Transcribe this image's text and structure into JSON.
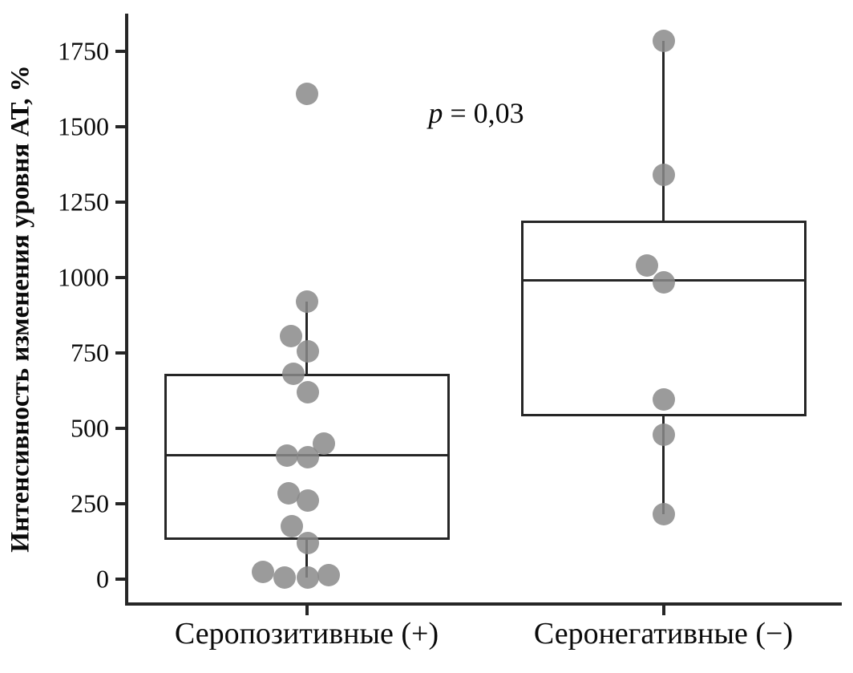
{
  "chart_data": {
    "type": "boxplot",
    "title": "",
    "xlabel": "",
    "ylabel": "Интенсивность изменения уровня АТ, %",
    "annotation": {
      "variable": "p",
      "text": " = 0,03"
    },
    "categories": [
      "Серопозитивные (+)",
      "Серонегативные (−)"
    ],
    "y_ticks": [
      0,
      250,
      500,
      750,
      1000,
      1250,
      1500,
      1750
    ],
    "ylim": [
      -82,
      1875
    ],
    "grid": false,
    "legend": "none",
    "series": [
      {
        "name": "Серопозитивные (+)",
        "box": {
          "q1": 130,
          "median": 410,
          "q3": 680,
          "whisker_low": 5,
          "whisker_high": 920
        },
        "points": [
          {
            "v": 1610,
            "dx": 0
          },
          {
            "v": 920,
            "dx": 0
          },
          {
            "v": 805,
            "dx": -20
          },
          {
            "v": 755,
            "dx": 1
          },
          {
            "v": 680,
            "dx": -17
          },
          {
            "v": 620,
            "dx": 1
          },
          {
            "v": 450,
            "dx": 21
          },
          {
            "v": 410,
            "dx": -25
          },
          {
            "v": 405,
            "dx": 1
          },
          {
            "v": 285,
            "dx": -23
          },
          {
            "v": 260,
            "dx": 1
          },
          {
            "v": 175,
            "dx": -19
          },
          {
            "v": 120,
            "dx": 1
          },
          {
            "v": 25,
            "dx": -55
          },
          {
            "v": 5,
            "dx": -28
          },
          {
            "v": 5,
            "dx": 1
          },
          {
            "v": 15,
            "dx": 27
          }
        ]
      },
      {
        "name": "Серонегативные (−)",
        "box": {
          "q1": 540,
          "median": 990,
          "q3": 1190,
          "whisker_low": 215,
          "whisker_high": 1785
        },
        "points": [
          {
            "v": 1785,
            "dx": 0
          },
          {
            "v": 1340,
            "dx": 0
          },
          {
            "v": 1040,
            "dx": -21
          },
          {
            "v": 985,
            "dx": 0
          },
          {
            "v": 595,
            "dx": 0
          },
          {
            "v": 480,
            "dx": 0
          },
          {
            "v": 215,
            "dx": 0
          }
        ]
      }
    ],
    "colors": {
      "line": "#262626",
      "point": "#8a8a8a",
      "point_opacity": 0.85,
      "background": "#ffffff",
      "text": "#0a0a0a"
    }
  }
}
